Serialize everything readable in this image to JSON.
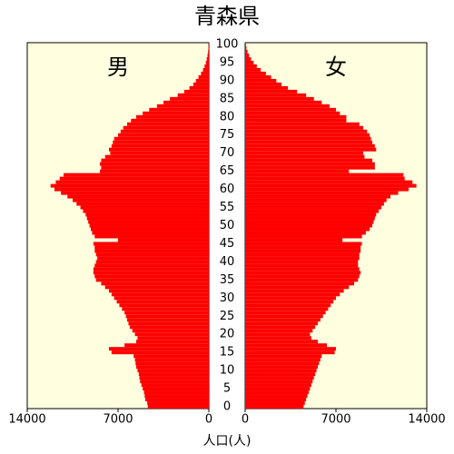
{
  "chart_data": {
    "type": "pyramid",
    "title": "青森県",
    "xlabel": "人口(人)",
    "y": [
      0,
      1,
      2,
      3,
      4,
      5,
      6,
      7,
      8,
      9,
      10,
      11,
      12,
      13,
      14,
      15,
      16,
      17,
      18,
      19,
      20,
      21,
      22,
      23,
      24,
      25,
      26,
      27,
      28,
      29,
      30,
      31,
      32,
      33,
      34,
      35,
      36,
      37,
      38,
      39,
      40,
      41,
      42,
      43,
      44,
      45,
      46,
      47,
      48,
      49,
      50,
      51,
      52,
      53,
      54,
      55,
      56,
      57,
      58,
      59,
      60,
      61,
      62,
      63,
      64,
      65,
      66,
      67,
      68,
      69,
      70,
      71,
      72,
      73,
      74,
      75,
      76,
      77,
      78,
      79,
      80,
      81,
      82,
      83,
      84,
      85,
      86,
      87,
      88,
      89,
      90,
      91,
      92,
      93,
      94,
      95,
      96,
      97,
      98,
      99,
      100
    ],
    "series": [
      {
        "name": "男",
        "color": "#ff0000",
        "values": [
          4700,
          4750,
          4900,
          4950,
          5000,
          5100,
          5200,
          5300,
          5350,
          5400,
          5500,
          5600,
          5650,
          5700,
          5800,
          7500,
          7700,
          6500,
          5600,
          5500,
          5700,
          5900,
          6100,
          6200,
          6300,
          6400,
          6500,
          6700,
          6900,
          7100,
          7300,
          7500,
          7700,
          8000,
          8300,
          8700,
          8800,
          8900,
          8900,
          8800,
          8700,
          8600,
          8700,
          8800,
          8800,
          8900,
          7000,
          8800,
          9000,
          9100,
          9200,
          9300,
          9400,
          9500,
          9700,
          9900,
          10200,
          10500,
          10900,
          11400,
          11900,
          12200,
          11800,
          11500,
          11200,
          8400,
          8300,
          8400,
          8300,
          8000,
          7600,
          7700,
          7500,
          7400,
          7300,
          7000,
          6800,
          6600,
          6300,
          6000,
          5600,
          5100,
          4600,
          4000,
          3500,
          3000,
          2400,
          1900,
          1500,
          1200,
          1000,
          800,
          600,
          450,
          330,
          230,
          160,
          100,
          60,
          35,
          20
        ]
      },
      {
        "name": "女",
        "color": "#ff0000",
        "values": [
          4500,
          4600,
          4700,
          4800,
          4900,
          5000,
          5100,
          5200,
          5300,
          5400,
          5500,
          5600,
          5700,
          5800,
          5900,
          6900,
          7000,
          6300,
          5600,
          5100,
          5000,
          5200,
          5400,
          5600,
          5800,
          6000,
          6200,
          6400,
          6600,
          6800,
          7000,
          7300,
          7600,
          8000,
          8400,
          8700,
          8800,
          8900,
          8800,
          8700,
          8700,
          8800,
          8800,
          8900,
          8900,
          9000,
          7500,
          9000,
          9300,
          9600,
          9800,
          9900,
          10000,
          10100,
          10300,
          10500,
          10700,
          10900,
          11200,
          11800,
          12600,
          13200,
          12900,
          12300,
          12200,
          8000,
          10000,
          10000,
          9800,
          9200,
          9100,
          10100,
          10000,
          9800,
          9700,
          9600,
          9400,
          9100,
          8800,
          7800,
          7800,
          7300,
          7000,
          6500,
          5900,
          5300,
          4700,
          4000,
          3300,
          2800,
          2400,
          2000,
          1600,
          1200,
          900,
          650,
          450,
          300,
          180,
          100,
          60
        ]
      }
    ],
    "xlim": [
      0,
      14000
    ],
    "xticks": [
      0,
      7000,
      14000
    ],
    "ylim": [
      -0.5,
      100.5
    ],
    "yticks": [
      0,
      5,
      10,
      15,
      20,
      25,
      30,
      35,
      40,
      45,
      50,
      55,
      60,
      65,
      70,
      75,
      80,
      85,
      90,
      95,
      100
    ],
    "background": "#ffffe0"
  }
}
